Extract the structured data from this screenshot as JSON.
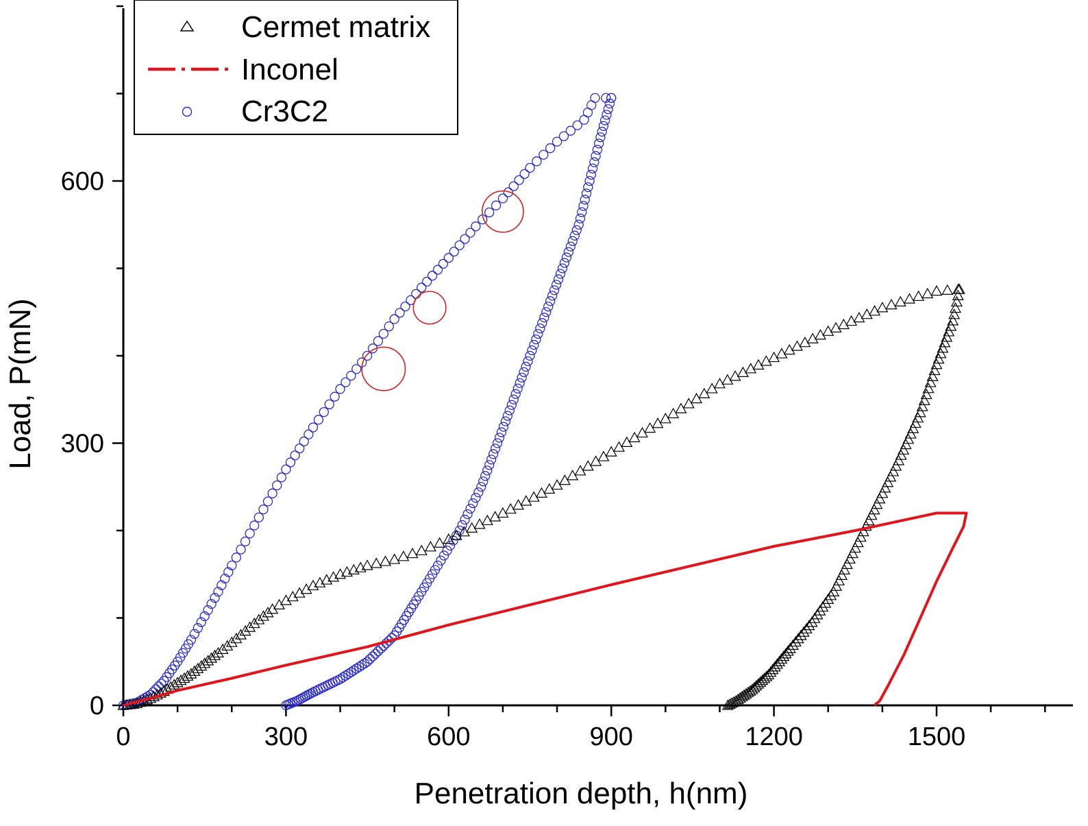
{
  "chart_data": {
    "type": "scatter",
    "title": "",
    "xlabel": "Penetration depth, h(nm)",
    "ylabel": "Load, P(mN)",
    "xlim": [
      0,
      1750
    ],
    "ylim": [
      0,
      800
    ],
    "xticks": [
      0,
      300,
      600,
      900,
      1200,
      1500
    ],
    "yticks": [
      0,
      300,
      600
    ],
    "xtick_labels": [
      "0",
      "300",
      "600",
      "900",
      "1200",
      "1500"
    ],
    "ytick_labels": [
      "0",
      "300",
      "600"
    ],
    "grid": false,
    "legend_position": "top-left",
    "series": [
      {
        "name": "Cermet matrix",
        "marker": "triangle-open",
        "color": "#000000",
        "loading": [
          [
            0,
            0
          ],
          [
            25,
            2
          ],
          [
            50,
            8
          ],
          [
            75,
            16
          ],
          [
            100,
            26
          ],
          [
            125,
            36
          ],
          [
            150,
            48
          ],
          [
            175,
            60
          ],
          [
            200,
            72
          ],
          [
            225,
            85
          ],
          [
            250,
            98
          ],
          [
            275,
            110
          ],
          [
            300,
            120
          ],
          [
            350,
            137
          ],
          [
            400,
            150
          ],
          [
            450,
            160
          ],
          [
            500,
            167
          ],
          [
            550,
            177
          ],
          [
            600,
            190
          ],
          [
            700,
            220
          ],
          [
            800,
            252
          ],
          [
            900,
            290
          ],
          [
            1000,
            328
          ],
          [
            1100,
            368
          ],
          [
            1200,
            398
          ],
          [
            1300,
            428
          ],
          [
            1400,
            455
          ],
          [
            1450,
            465
          ],
          [
            1500,
            474
          ],
          [
            1540,
            476
          ]
        ],
        "unloading": [
          [
            1542,
            476
          ],
          [
            1530,
            440
          ],
          [
            1500,
            390
          ],
          [
            1470,
            335
          ],
          [
            1430,
            280
          ],
          [
            1390,
            230
          ],
          [
            1350,
            180
          ],
          [
            1310,
            130
          ],
          [
            1270,
            95
          ],
          [
            1230,
            65
          ],
          [
            1190,
            35
          ],
          [
            1160,
            18
          ],
          [
            1130,
            5
          ],
          [
            1115,
            0
          ]
        ]
      },
      {
        "name": "Inconel",
        "marker": "line-dash-dot",
        "color": "#e0161c",
        "loading": [
          [
            0,
            0
          ],
          [
            50,
            8
          ],
          [
            100,
            17
          ],
          [
            200,
            31
          ],
          [
            300,
            46
          ],
          [
            450,
            67
          ],
          [
            600,
            92
          ],
          [
            900,
            138
          ],
          [
            1200,
            182
          ],
          [
            1350,
            200
          ],
          [
            1500,
            220
          ],
          [
            1550,
            220
          ]
        ],
        "unloading": [
          [
            1555,
            220
          ],
          [
            1550,
            205
          ],
          [
            1530,
            180
          ],
          [
            1500,
            142
          ],
          [
            1470,
            100
          ],
          [
            1440,
            58
          ],
          [
            1410,
            22
          ],
          [
            1395,
            5
          ],
          [
            1385,
            0
          ]
        ]
      },
      {
        "name": "Cr3C2",
        "marker": "circle-open",
        "color": "#2a2ad0",
        "loading": [
          [
            0,
            0
          ],
          [
            25,
            3
          ],
          [
            50,
            12
          ],
          [
            75,
            28
          ],
          [
            100,
            50
          ],
          [
            125,
            75
          ],
          [
            150,
            102
          ],
          [
            175,
            130
          ],
          [
            200,
            160
          ],
          [
            250,
            215
          ],
          [
            300,
            270
          ],
          [
            350,
            318
          ],
          [
            400,
            362
          ],
          [
            450,
            400
          ],
          [
            500,
            442
          ],
          [
            550,
            478
          ],
          [
            600,
            512
          ],
          [
            650,
            548
          ],
          [
            700,
            580
          ],
          [
            750,
            615
          ],
          [
            800,
            645
          ],
          [
            850,
            670
          ],
          [
            870,
            695
          ],
          [
            890,
            695
          ],
          [
            900,
            695
          ]
        ],
        "unloading": [
          [
            900,
            695
          ],
          [
            880,
            650
          ],
          [
            860,
            600
          ],
          [
            840,
            550
          ],
          [
            810,
            500
          ],
          [
            780,
            450
          ],
          [
            750,
            400
          ],
          [
            720,
            350
          ],
          [
            690,
            300
          ],
          [
            660,
            250
          ],
          [
            620,
            200
          ],
          [
            580,
            160
          ],
          [
            540,
            120
          ],
          [
            500,
            80
          ],
          [
            450,
            50
          ],
          [
            400,
            30
          ],
          [
            350,
            15
          ],
          [
            320,
            5
          ],
          [
            300,
            0
          ]
        ]
      }
    ],
    "annotations": [
      {
        "shape": "circle",
        "color": "#d02020",
        "center": [
          480,
          385
        ],
        "radius_x": 40
      },
      {
        "shape": "circle",
        "color": "#d02020",
        "center": [
          565,
          455
        ],
        "radius_x": 30
      },
      {
        "shape": "circle",
        "color": "#d02020",
        "center": [
          700,
          565
        ],
        "radius_x": 38
      }
    ]
  }
}
